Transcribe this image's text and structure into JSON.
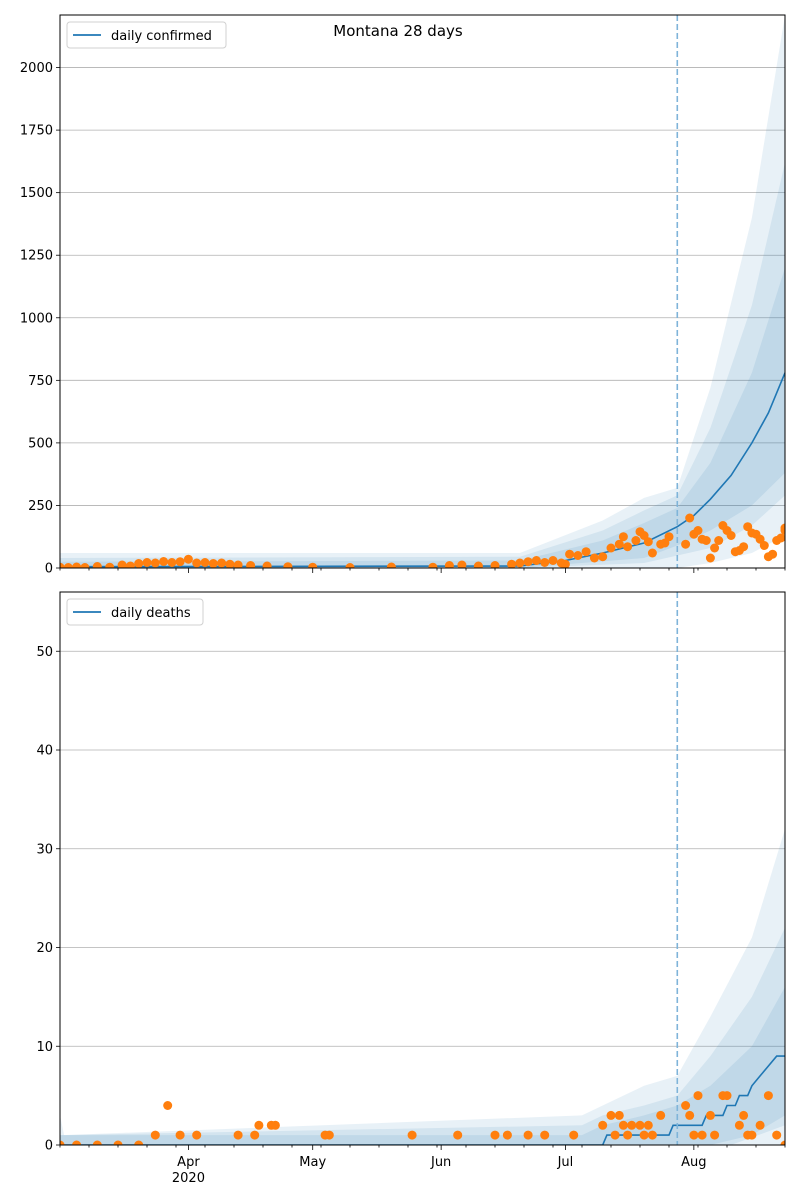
{
  "figure": {
    "title": "Montana 28 days",
    "forecast_marker_date": "2020-07-28"
  },
  "colors": {
    "model_line": "#1f77b4",
    "observed_points": "#ff7f0e",
    "band": "#1f77b4",
    "marker_line": "#7fb4d9",
    "grid": "#b0b0b0"
  },
  "chart_data": [
    {
      "type": "line",
      "legend": "daily confirmed",
      "legend_position": "top-left",
      "grid": "horizontal",
      "xlim": [
        "2020-03-01",
        "2020-08-23"
      ],
      "ylim": [
        0,
        2210
      ],
      "yticks": [
        0,
        250,
        500,
        750,
        1000,
        1250,
        1500,
        1750,
        2000
      ],
      "model_median": [
        [
          "2020-03-01",
          5
        ],
        [
          "2020-06-20",
          8
        ],
        [
          "2020-07-01",
          30
        ],
        [
          "2020-07-10",
          60
        ],
        [
          "2020-07-20",
          100
        ],
        [
          "2020-07-28",
          165
        ],
        [
          "2020-08-01",
          210
        ],
        [
          "2020-08-05",
          275
        ],
        [
          "2020-08-10",
          370
        ],
        [
          "2020-08-15",
          500
        ],
        [
          "2020-08-19",
          620
        ],
        [
          "2020-08-23",
          780
        ]
      ],
      "bands_upper": [
        [
          [
            "2020-03-01",
            25
          ],
          [
            "2020-06-20",
            30
          ],
          [
            "2020-07-10",
            110
          ],
          [
            "2020-07-20",
            180
          ],
          [
            "2020-07-28",
            240
          ],
          [
            "2020-08-05",
            420
          ],
          [
            "2020-08-15",
            780
          ],
          [
            "2020-08-23",
            1200
          ]
        ],
        [
          [
            "2020-03-01",
            40
          ],
          [
            "2020-06-20",
            45
          ],
          [
            "2020-07-10",
            150
          ],
          [
            "2020-07-20",
            230
          ],
          [
            "2020-07-28",
            290
          ],
          [
            "2020-08-05",
            560
          ],
          [
            "2020-08-15",
            1050
          ],
          [
            "2020-08-23",
            1620
          ]
        ],
        [
          [
            "2020-03-01",
            60
          ],
          [
            "2020-06-20",
            60
          ],
          [
            "2020-07-10",
            190
          ],
          [
            "2020-07-20",
            280
          ],
          [
            "2020-07-28",
            320
          ],
          [
            "2020-08-05",
            720
          ],
          [
            "2020-08-15",
            1400
          ],
          [
            "2020-08-23",
            2210
          ]
        ]
      ],
      "bands_lower": [
        [
          [
            "2020-03-01",
            0
          ],
          [
            "2020-06-20",
            0
          ],
          [
            "2020-07-20",
            40
          ],
          [
            "2020-07-28",
            90
          ],
          [
            "2020-08-05",
            150
          ],
          [
            "2020-08-15",
            250
          ],
          [
            "2020-08-23",
            380
          ]
        ],
        [
          [
            "2020-03-01",
            0
          ],
          [
            "2020-06-20",
            0
          ],
          [
            "2020-07-20",
            20
          ],
          [
            "2020-07-28",
            50
          ],
          [
            "2020-08-05",
            80
          ],
          [
            "2020-08-15",
            170
          ],
          [
            "2020-08-23",
            290
          ]
        ],
        [
          [
            "2020-03-01",
            0
          ],
          [
            "2020-07-28",
            0
          ],
          [
            "2020-08-05",
            20
          ],
          [
            "2020-08-15",
            60
          ],
          [
            "2020-08-23",
            130
          ]
        ]
      ],
      "observed": [
        [
          "2020-03-01",
          3
        ],
        [
          "2020-03-03",
          2
        ],
        [
          "2020-03-05",
          4
        ],
        [
          "2020-03-07",
          2
        ],
        [
          "2020-03-10",
          6
        ],
        [
          "2020-03-13",
          3
        ],
        [
          "2020-03-16",
          12
        ],
        [
          "2020-03-18",
          8
        ],
        [
          "2020-03-20",
          18
        ],
        [
          "2020-03-22",
          22
        ],
        [
          "2020-03-24",
          20
        ],
        [
          "2020-03-26",
          26
        ],
        [
          "2020-03-28",
          22
        ],
        [
          "2020-03-30",
          25
        ],
        [
          "2020-04-01",
          35
        ],
        [
          "2020-04-03",
          20
        ],
        [
          "2020-04-05",
          22
        ],
        [
          "2020-04-07",
          18
        ],
        [
          "2020-04-09",
          20
        ],
        [
          "2020-04-11",
          15
        ],
        [
          "2020-04-13",
          12
        ],
        [
          "2020-04-16",
          10
        ],
        [
          "2020-04-20",
          8
        ],
        [
          "2020-04-25",
          5
        ],
        [
          "2020-05-01",
          3
        ],
        [
          "2020-05-10",
          2
        ],
        [
          "2020-05-20",
          4
        ],
        [
          "2020-05-30",
          3
        ],
        [
          "2020-06-03",
          10
        ],
        [
          "2020-06-06",
          12
        ],
        [
          "2020-06-10",
          8
        ],
        [
          "2020-06-14",
          10
        ],
        [
          "2020-06-18",
          15
        ],
        [
          "2020-06-20",
          20
        ],
        [
          "2020-06-22",
          25
        ],
        [
          "2020-06-24",
          30
        ],
        [
          "2020-06-26",
          22
        ],
        [
          "2020-06-28",
          30
        ],
        [
          "2020-06-30",
          20
        ],
        [
          "2020-07-01",
          15
        ],
        [
          "2020-07-02",
          55
        ],
        [
          "2020-07-04",
          50
        ],
        [
          "2020-07-06",
          65
        ],
        [
          "2020-07-08",
          40
        ],
        [
          "2020-07-10",
          45
        ],
        [
          "2020-07-12",
          80
        ],
        [
          "2020-07-14",
          95
        ],
        [
          "2020-07-15",
          125
        ],
        [
          "2020-07-16",
          85
        ],
        [
          "2020-07-18",
          110
        ],
        [
          "2020-07-19",
          145
        ],
        [
          "2020-07-20",
          130
        ],
        [
          "2020-07-21",
          105
        ],
        [
          "2020-07-22",
          60
        ],
        [
          "2020-07-24",
          95
        ],
        [
          "2020-07-25",
          100
        ],
        [
          "2020-07-26",
          125
        ],
        [
          "2020-07-30",
          95
        ],
        [
          "2020-07-31",
          200
        ],
        [
          "2020-08-01",
          135
        ],
        [
          "2020-08-02",
          150
        ],
        [
          "2020-08-03",
          115
        ],
        [
          "2020-08-04",
          110
        ],
        [
          "2020-08-05",
          40
        ],
        [
          "2020-08-06",
          80
        ],
        [
          "2020-08-07",
          110
        ],
        [
          "2020-08-08",
          170
        ],
        [
          "2020-08-09",
          150
        ],
        [
          "2020-08-10",
          130
        ],
        [
          "2020-08-11",
          65
        ],
        [
          "2020-08-12",
          70
        ],
        [
          "2020-08-13",
          85
        ],
        [
          "2020-08-14",
          165
        ],
        [
          "2020-08-15",
          140
        ],
        [
          "2020-08-16",
          135
        ],
        [
          "2020-08-17",
          115
        ],
        [
          "2020-08-18",
          90
        ],
        [
          "2020-08-19",
          45
        ],
        [
          "2020-08-20",
          55
        ],
        [
          "2020-08-21",
          110
        ],
        [
          "2020-08-22",
          120
        ],
        [
          "2020-08-23",
          150
        ],
        [
          "2020-08-23",
          160
        ]
      ]
    },
    {
      "type": "line",
      "legend": "daily deaths",
      "legend_position": "top-left",
      "grid": "horizontal",
      "xlim": [
        "2020-03-01",
        "2020-08-23"
      ],
      "ylim": [
        0,
        56
      ],
      "yticks": [
        0,
        10,
        20,
        30,
        40,
        50
      ],
      "xticks": [
        {
          "date": "2020-04-01",
          "label": "Apr",
          "sublabel": "2020"
        },
        {
          "date": "2020-05-01",
          "label": "May"
        },
        {
          "date": "2020-06-01",
          "label": "Jun"
        },
        {
          "date": "2020-07-01",
          "label": "Jul"
        },
        {
          "date": "2020-08-01",
          "label": "Aug"
        }
      ],
      "model_median": [
        [
          "2020-03-01",
          0
        ],
        [
          "2020-07-10",
          0
        ],
        [
          "2020-07-11",
          1
        ],
        [
          "2020-07-26",
          1
        ],
        [
          "2020-07-27",
          2
        ],
        [
          "2020-08-03",
          2
        ],
        [
          "2020-08-04",
          3
        ],
        [
          "2020-08-08",
          3
        ],
        [
          "2020-08-09",
          4
        ],
        [
          "2020-08-11",
          4
        ],
        [
          "2020-08-12",
          5
        ],
        [
          "2020-08-14",
          5
        ],
        [
          "2020-08-15",
          6
        ],
        [
          "2020-08-17",
          7
        ],
        [
          "2020-08-19",
          8
        ],
        [
          "2020-08-21",
          9
        ],
        [
          "2020-08-23",
          9
        ]
      ],
      "bands_upper": [
        [
          [
            "2020-03-01",
            1
          ],
          [
            "2020-07-05",
            1
          ],
          [
            "2020-07-10",
            2
          ],
          [
            "2020-07-20",
            3
          ],
          [
            "2020-07-28",
            4
          ],
          [
            "2020-08-05",
            6
          ],
          [
            "2020-08-15",
            10
          ],
          [
            "2020-08-23",
            16
          ]
        ],
        [
          [
            "2020-03-01",
            1
          ],
          [
            "2020-07-05",
            2
          ],
          [
            "2020-07-10",
            3
          ],
          [
            "2020-07-20",
            4
          ],
          [
            "2020-07-28",
            5
          ],
          [
            "2020-08-05",
            9
          ],
          [
            "2020-08-15",
            15
          ],
          [
            "2020-08-23",
            22
          ]
        ],
        [
          [
            "2020-03-01",
            3
          ],
          [
            "2020-03-02",
            1
          ],
          [
            "2020-07-05",
            3
          ],
          [
            "2020-07-10",
            4
          ],
          [
            "2020-07-20",
            6
          ],
          [
            "2020-07-28",
            7
          ],
          [
            "2020-08-05",
            13
          ],
          [
            "2020-08-15",
            21
          ],
          [
            "2020-08-23",
            32
          ]
        ]
      ],
      "bands_lower": [
        [
          [
            "2020-03-01",
            0
          ],
          [
            "2020-08-05",
            0
          ],
          [
            "2020-08-15",
            1
          ],
          [
            "2020-08-23",
            3
          ]
        ],
        [
          [
            "2020-03-01",
            0
          ],
          [
            "2020-08-10",
            0
          ],
          [
            "2020-08-23",
            2
          ]
        ],
        [
          [
            "2020-03-01",
            0
          ],
          [
            "2020-08-23",
            0
          ]
        ]
      ],
      "observed": [
        [
          "2020-03-01",
          0
        ],
        [
          "2020-03-05",
          0
        ],
        [
          "2020-03-10",
          0
        ],
        [
          "2020-03-15",
          0
        ],
        [
          "2020-03-20",
          0
        ],
        [
          "2020-03-24",
          1
        ],
        [
          "2020-03-27",
          4
        ],
        [
          "2020-03-30",
          1
        ],
        [
          "2020-04-03",
          1
        ],
        [
          "2020-04-13",
          1
        ],
        [
          "2020-04-17",
          1
        ],
        [
          "2020-04-18",
          2
        ],
        [
          "2020-04-21",
          2
        ],
        [
          "2020-04-22",
          2
        ],
        [
          "2020-05-04",
          1
        ],
        [
          "2020-05-05",
          1
        ],
        [
          "2020-05-25",
          1
        ],
        [
          "2020-06-05",
          1
        ],
        [
          "2020-06-14",
          1
        ],
        [
          "2020-06-17",
          1
        ],
        [
          "2020-06-22",
          1
        ],
        [
          "2020-06-26",
          1
        ],
        [
          "2020-07-03",
          1
        ],
        [
          "2020-07-10",
          2
        ],
        [
          "2020-07-12",
          3
        ],
        [
          "2020-07-13",
          1
        ],
        [
          "2020-07-14",
          3
        ],
        [
          "2020-07-15",
          2
        ],
        [
          "2020-07-16",
          1
        ],
        [
          "2020-07-17",
          2
        ],
        [
          "2020-07-19",
          2
        ],
        [
          "2020-07-20",
          1
        ],
        [
          "2020-07-21",
          2
        ],
        [
          "2020-07-22",
          1
        ],
        [
          "2020-07-24",
          3
        ],
        [
          "2020-07-30",
          4
        ],
        [
          "2020-07-31",
          3
        ],
        [
          "2020-08-01",
          1
        ],
        [
          "2020-08-02",
          5
        ],
        [
          "2020-08-03",
          1
        ],
        [
          "2020-08-05",
          3
        ],
        [
          "2020-08-06",
          1
        ],
        [
          "2020-08-08",
          5
        ],
        [
          "2020-08-09",
          5
        ],
        [
          "2020-08-12",
          2
        ],
        [
          "2020-08-13",
          3
        ],
        [
          "2020-08-14",
          1
        ],
        [
          "2020-08-15",
          1
        ],
        [
          "2020-08-17",
          2
        ],
        [
          "2020-08-19",
          5
        ],
        [
          "2020-08-21",
          1
        ],
        [
          "2020-08-23",
          0
        ]
      ]
    }
  ]
}
